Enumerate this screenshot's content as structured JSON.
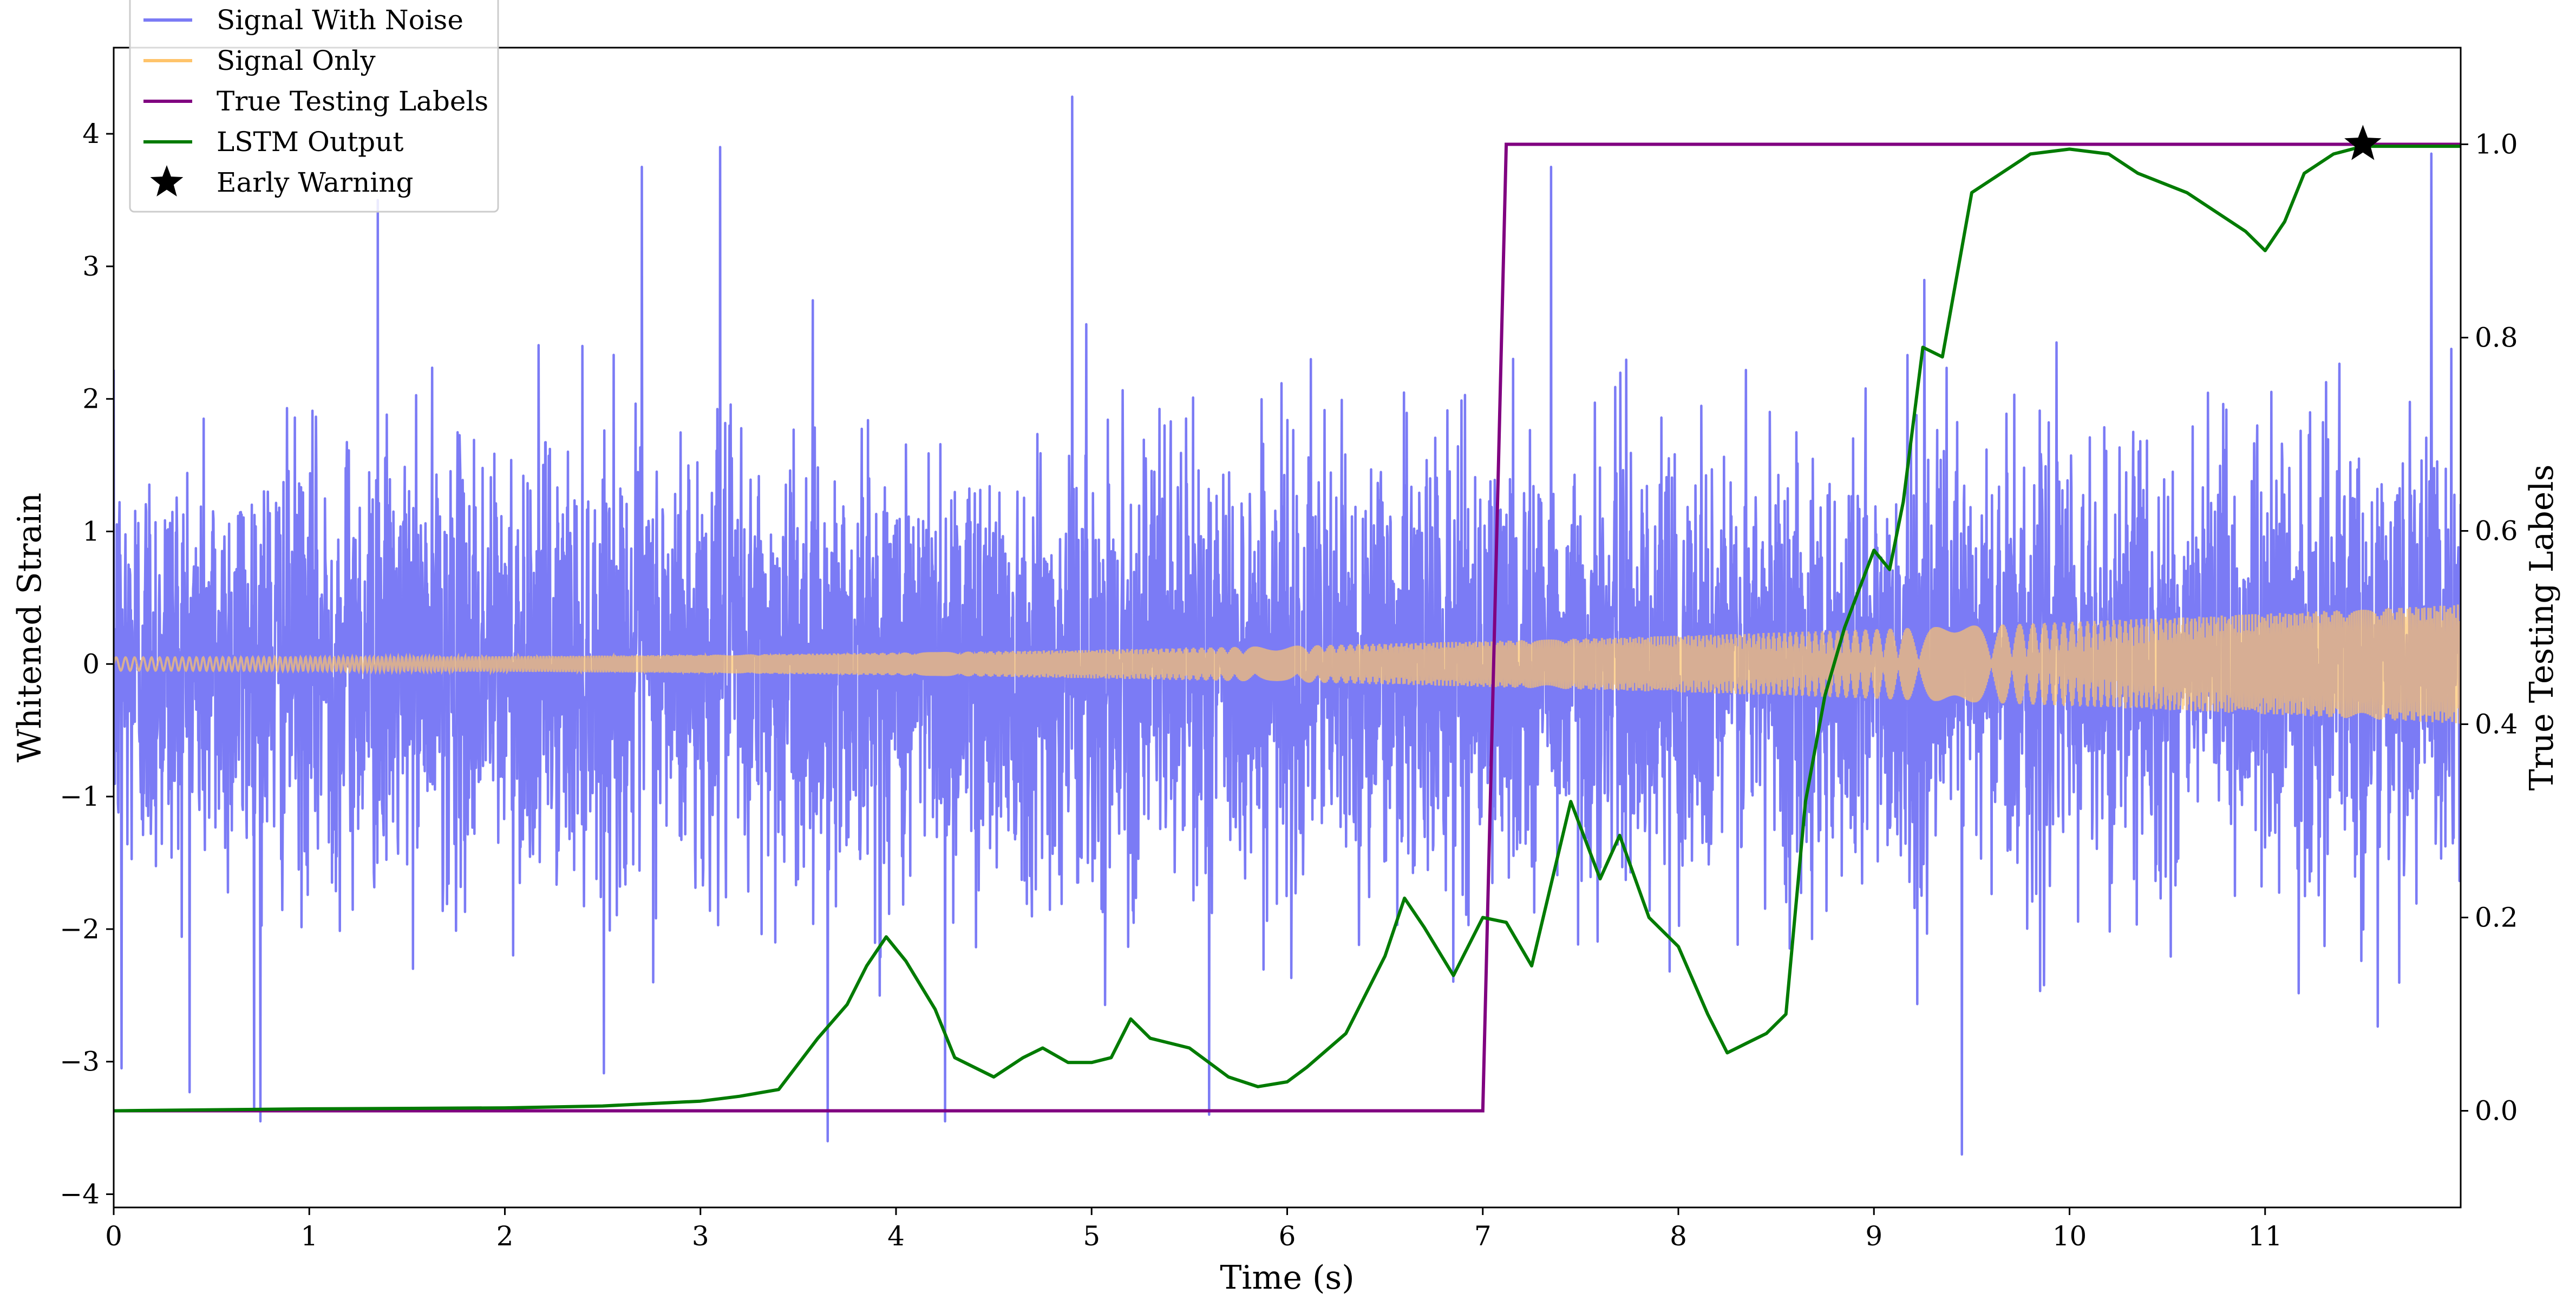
{
  "chart_data": {
    "type": "line",
    "title": "",
    "xlabel": "Time (s)",
    "ylabel": "Whitened Strain",
    "y2label": "True Testing Labels",
    "xlim": [
      0,
      12
    ],
    "ylim": [
      -4.1,
      4.65
    ],
    "y2lim": [
      -0.1,
      1.1
    ],
    "xticks": [
      0,
      1,
      2,
      3,
      4,
      5,
      6,
      7,
      8,
      9,
      10,
      11
    ],
    "xtick_labels": [
      "0",
      "1",
      "2",
      "3",
      "4",
      "5",
      "6",
      "7",
      "8",
      "9",
      "10",
      "11"
    ],
    "yticks": [
      -4,
      -3,
      -2,
      -1,
      0,
      1,
      2,
      3,
      4
    ],
    "ytick_labels": [
      "−4",
      "−3",
      "−2",
      "−1",
      "0",
      "1",
      "2",
      "3",
      "4"
    ],
    "y2ticks": [
      0.0,
      0.2,
      0.4,
      0.6,
      0.8,
      1.0
    ],
    "y2tick_labels": [
      "0.0",
      "0.2",
      "0.4",
      "0.6",
      "0.8",
      "1.0"
    ],
    "grid": false,
    "legend_position": "top-left",
    "series": [
      {
        "name": "Signal With Noise",
        "axis": "left",
        "color": "#7b7bf5",
        "style": "noise",
        "typical_band": [
          -1.6,
          1.6
        ],
        "min": -3.7,
        "max": 4.28,
        "peaks": [
          [
            0.04,
            -3.05
          ],
          [
            0.75,
            -3.45
          ],
          [
            1.35,
            3.5
          ],
          [
            2.7,
            3.75
          ],
          [
            3.1,
            3.9
          ],
          [
            3.65,
            -3.6
          ],
          [
            4.25,
            -3.45
          ],
          [
            4.9,
            4.28
          ],
          [
            5.6,
            -3.4
          ],
          [
            7.35,
            3.75
          ],
          [
            9.45,
            -3.7
          ],
          [
            11.85,
            3.85
          ]
        ]
      },
      {
        "name": "Signal Only",
        "axis": "left",
        "color": "#ffc46b",
        "style": "chirp",
        "amplitude_start": 0.05,
        "amplitude_end": 0.45
      },
      {
        "name": "True Testing Labels",
        "axis": "right",
        "color": "#800080",
        "x": [
          0,
          7.0,
          7.12,
          12.0
        ],
        "values": [
          0,
          0,
          1,
          1
        ]
      },
      {
        "name": "LSTM Output",
        "axis": "right",
        "color": "#007b00",
        "x": [
          0,
          1,
          2,
          2.5,
          2.8,
          3.0,
          3.2,
          3.4,
          3.6,
          3.75,
          3.85,
          3.95,
          4.05,
          4.2,
          4.3,
          4.5,
          4.65,
          4.75,
          4.88,
          5.0,
          5.1,
          5.2,
          5.3,
          5.4,
          5.5,
          5.7,
          5.85,
          6.0,
          6.1,
          6.3,
          6.5,
          6.6,
          6.7,
          6.85,
          7.0,
          7.12,
          7.25,
          7.45,
          7.6,
          7.7,
          7.85,
          8.0,
          8.15,
          8.25,
          8.35,
          8.45,
          8.55,
          8.65,
          8.75,
          8.85,
          9.0,
          9.08,
          9.15,
          9.25,
          9.35,
          9.5,
          9.65,
          9.8,
          10.0,
          10.2,
          10.35,
          10.6,
          10.75,
          10.9,
          11.0,
          11.1,
          11.2,
          11.35,
          11.5,
          12.0
        ],
        "values": [
          0.0,
          0.002,
          0.003,
          0.005,
          0.008,
          0.01,
          0.015,
          0.022,
          0.075,
          0.11,
          0.15,
          0.18,
          0.155,
          0.105,
          0.055,
          0.035,
          0.055,
          0.065,
          0.05,
          0.05,
          0.055,
          0.095,
          0.075,
          0.07,
          0.065,
          0.035,
          0.025,
          0.03,
          0.045,
          0.08,
          0.16,
          0.22,
          0.19,
          0.14,
          0.2,
          0.195,
          0.15,
          0.32,
          0.24,
          0.285,
          0.2,
          0.17,
          0.1,
          0.06,
          0.07,
          0.08,
          0.1,
          0.32,
          0.43,
          0.5,
          0.58,
          0.56,
          0.63,
          0.79,
          0.78,
          0.95,
          0.97,
          0.99,
          0.995,
          0.99,
          0.97,
          0.95,
          0.93,
          0.91,
          0.89,
          0.92,
          0.97,
          0.99,
          0.998,
          0.998
        ]
      },
      {
        "name": "Early Warning",
        "axis": "right",
        "color": "#000000",
        "marker": "star",
        "x": [
          11.5
        ],
        "values": [
          1.0
        ]
      }
    ]
  }
}
